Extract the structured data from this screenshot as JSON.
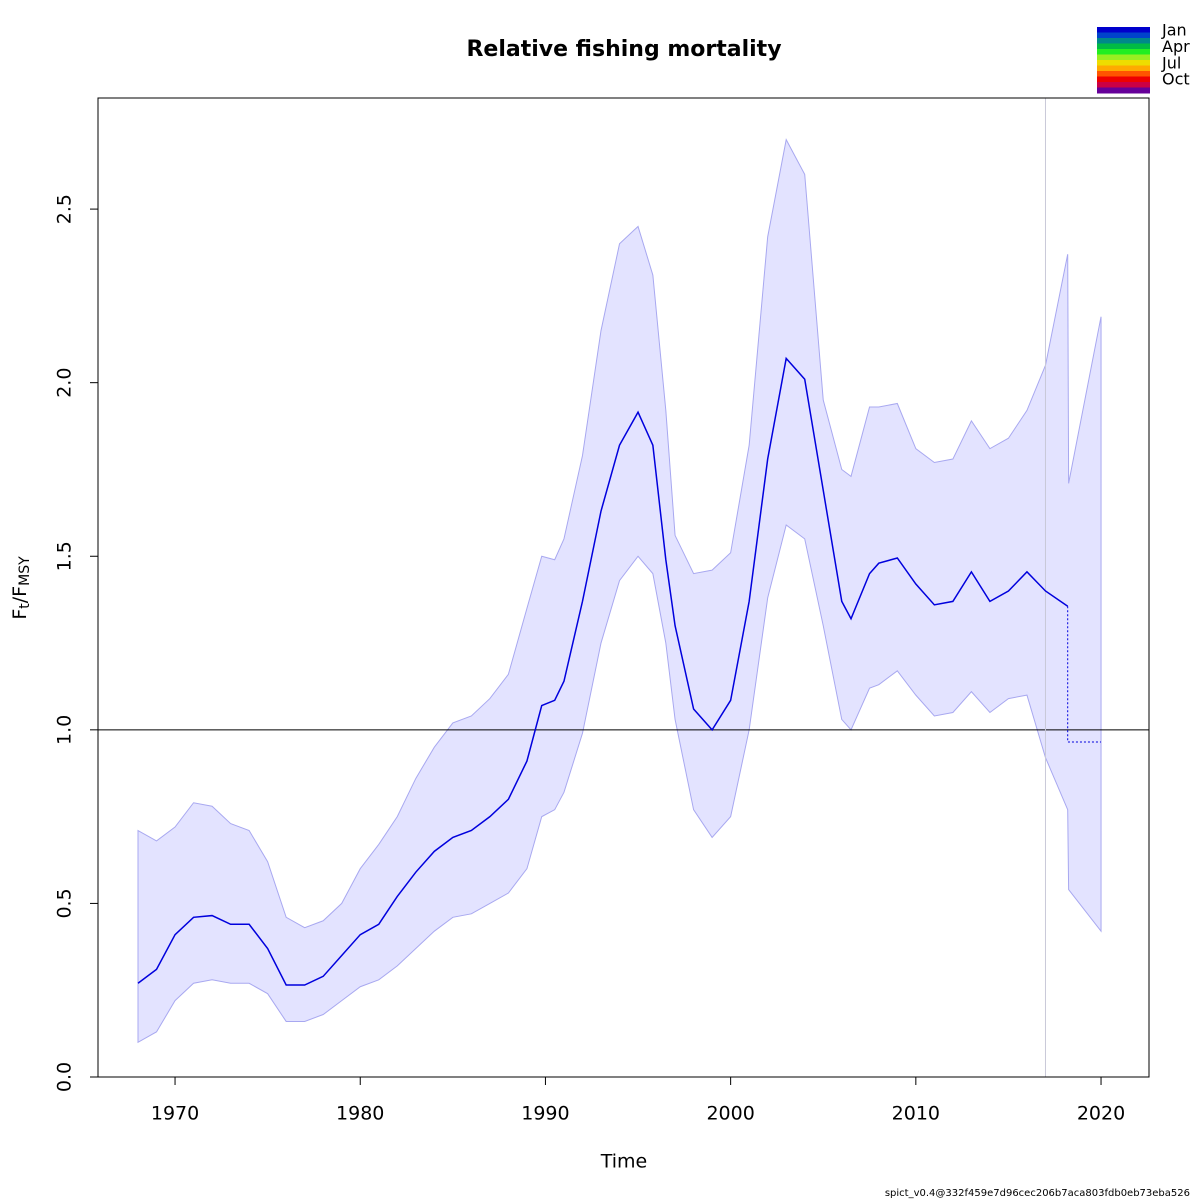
{
  "chart_data": {
    "type": "line",
    "title": "Relative fishing mortality",
    "x_label": "Time",
    "y_label": {
      "main": "F",
      "sub": "t",
      "sep": "/",
      "main2": "F",
      "sub2": "MSY"
    },
    "footer": "spict_v0.4@332f459e7d96cec206b7aca803fdb0eb73eba526",
    "xlim": [
      1965.84,
      2022.59
    ],
    "ylim": [
      0,
      2.82
    ],
    "xticks": [
      1970,
      1980,
      1990,
      2000,
      2010,
      2020
    ],
    "yticks": [
      {
        "value": 0,
        "label": "0.0"
      },
      0.5,
      {
        "value": 1,
        "label": "1.0"
      },
      1.5,
      {
        "value": 2,
        "label": "2.0"
      },
      2.5
    ],
    "hline": 1,
    "vline": 2017,
    "band": {
      "color": "#e3e3ff",
      "edge": "#a8a8f0",
      "x": [
        1968,
        1969,
        1970,
        1971,
        1972,
        1973,
        1974,
        1975,
        1976,
        1977,
        1978,
        1979,
        1980,
        1981,
        1982,
        1983,
        1984,
        1985,
        1986,
        1987,
        1988,
        1989,
        1989.8,
        1990.5,
        1991,
        1992,
        1993,
        1994,
        1995,
        1995.8,
        1996.5,
        1997,
        1998,
        1999,
        2000,
        2001,
        2002,
        2003,
        2004,
        2005,
        2006,
        2006.5,
        2007.5,
        2008,
        2009,
        2010,
        2011,
        2012,
        2013,
        2014,
        2015,
        2016,
        2017,
        2018.2,
        2018.25,
        2020
      ],
      "upper": [
        0.71,
        0.68,
        0.72,
        0.79,
        0.78,
        0.73,
        0.71,
        0.62,
        0.46,
        0.43,
        0.45,
        0.5,
        0.6,
        0.67,
        0.75,
        0.86,
        0.95,
        1.02,
        1.04,
        1.09,
        1.16,
        1.35,
        1.5,
        1.49,
        1.55,
        1.79,
        2.15,
        2.4,
        2.45,
        2.31,
        1.92,
        1.56,
        1.45,
        1.46,
        1.51,
        1.82,
        2.42,
        2.7,
        2.6,
        1.95,
        1.75,
        1.73,
        1.93,
        1.93,
        1.94,
        1.81,
        1.77,
        1.78,
        1.89,
        1.81,
        1.84,
        1.92,
        2.05,
        2.37,
        1.71,
        2.19
      ],
      "lower": [
        0.1,
        0.13,
        0.22,
        0.27,
        0.28,
        0.27,
        0.27,
        0.24,
        0.16,
        0.16,
        0.18,
        0.22,
        0.26,
        0.28,
        0.32,
        0.37,
        0.42,
        0.46,
        0.47,
        0.5,
        0.53,
        0.6,
        0.75,
        0.77,
        0.82,
        0.99,
        1.25,
        1.43,
        1.5,
        1.45,
        1.25,
        1.03,
        0.77,
        0.69,
        0.75,
        1.0,
        1.38,
        1.59,
        1.55,
        1.3,
        1.03,
        1.0,
        1.12,
        1.13,
        1.17,
        1.1,
        1.04,
        1.05,
        1.11,
        1.05,
        1.09,
        1.1,
        0.92,
        0.77,
        0.54,
        0.42
      ]
    },
    "series": [
      {
        "color": "#0000dd",
        "dash": "none",
        "x": [
          1968,
          1969,
          1970,
          1971,
          1972,
          1973,
          1974,
          1975,
          1976,
          1977,
          1978,
          1979,
          1980,
          1981,
          1982,
          1983,
          1984,
          1985,
          1986,
          1987,
          1988,
          1989,
          1989.8,
          1990.5,
          1991,
          1992,
          1993,
          1994,
          1995,
          1995.8,
          1996.5,
          1997,
          1998,
          1999,
          2000,
          2001,
          2002,
          2003,
          2004,
          2005,
          2006,
          2006.5,
          2007.5,
          2008,
          2009,
          2010,
          2011,
          2012,
          2013,
          2014,
          2015,
          2016,
          2017,
          2018.2
        ],
        "values": [
          0.27,
          0.31,
          0.41,
          0.46,
          0.465,
          0.44,
          0.44,
          0.37,
          0.265,
          0.265,
          0.29,
          0.35,
          0.41,
          0.44,
          0.52,
          0.59,
          0.65,
          0.69,
          0.71,
          0.75,
          0.8,
          0.91,
          1.07,
          1.085,
          1.14,
          1.37,
          1.63,
          1.82,
          1.915,
          1.82,
          1.49,
          1.3,
          1.06,
          1.0,
          1.085,
          1.37,
          1.78,
          2.07,
          2.01,
          1.69,
          1.37,
          1.32,
          1.45,
          1.48,
          1.495,
          1.42,
          1.36,
          1.37,
          1.455,
          1.37,
          1.4,
          1.455,
          1.4,
          1.356
        ]
      },
      {
        "color": "#0000dd",
        "dash": "2 2",
        "x": [
          2018.2,
          2018.2,
          2020
        ],
        "values": [
          1.356,
          0.965,
          0.965
        ]
      }
    ],
    "legend": {
      "labels": [
        "Jan",
        "Apr",
        "Jul",
        "Oct"
      ],
      "colors": [
        "#0000cc",
        "#0044cc",
        "#00888a",
        "#00bb44",
        "#22ee22",
        "#99ee22",
        "#eedd00",
        "#ffaa00",
        "#ff5500",
        "#ee0000",
        "#cc0044",
        "#660099"
      ]
    }
  }
}
